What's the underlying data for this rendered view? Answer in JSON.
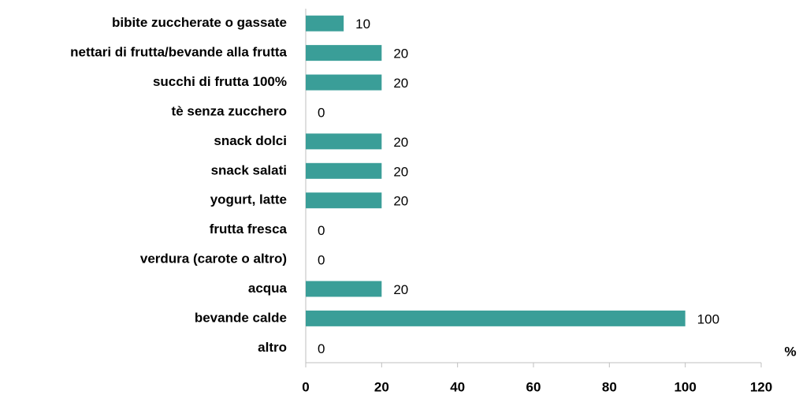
{
  "chart_data": {
    "type": "bar",
    "orientation": "horizontal",
    "categories": [
      "bibite zuccherate o gassate",
      "nettari di frutta/bevande alla frutta",
      "succhi di frutta 100%",
      "tè senza zucchero",
      "snack dolci",
      "snack salati",
      "yogurt, latte",
      "frutta fresca",
      "verdura (carote o altro)",
      "acqua",
      "bevande calde",
      "altro"
    ],
    "values": [
      10,
      20,
      20,
      0,
      20,
      20,
      20,
      0,
      0,
      20,
      100,
      0
    ],
    "color": "#3a9e98",
    "xlabel": "%",
    "xlim": [
      0,
      120
    ],
    "xticks": [
      0,
      20,
      40,
      60,
      80,
      100,
      120
    ]
  }
}
